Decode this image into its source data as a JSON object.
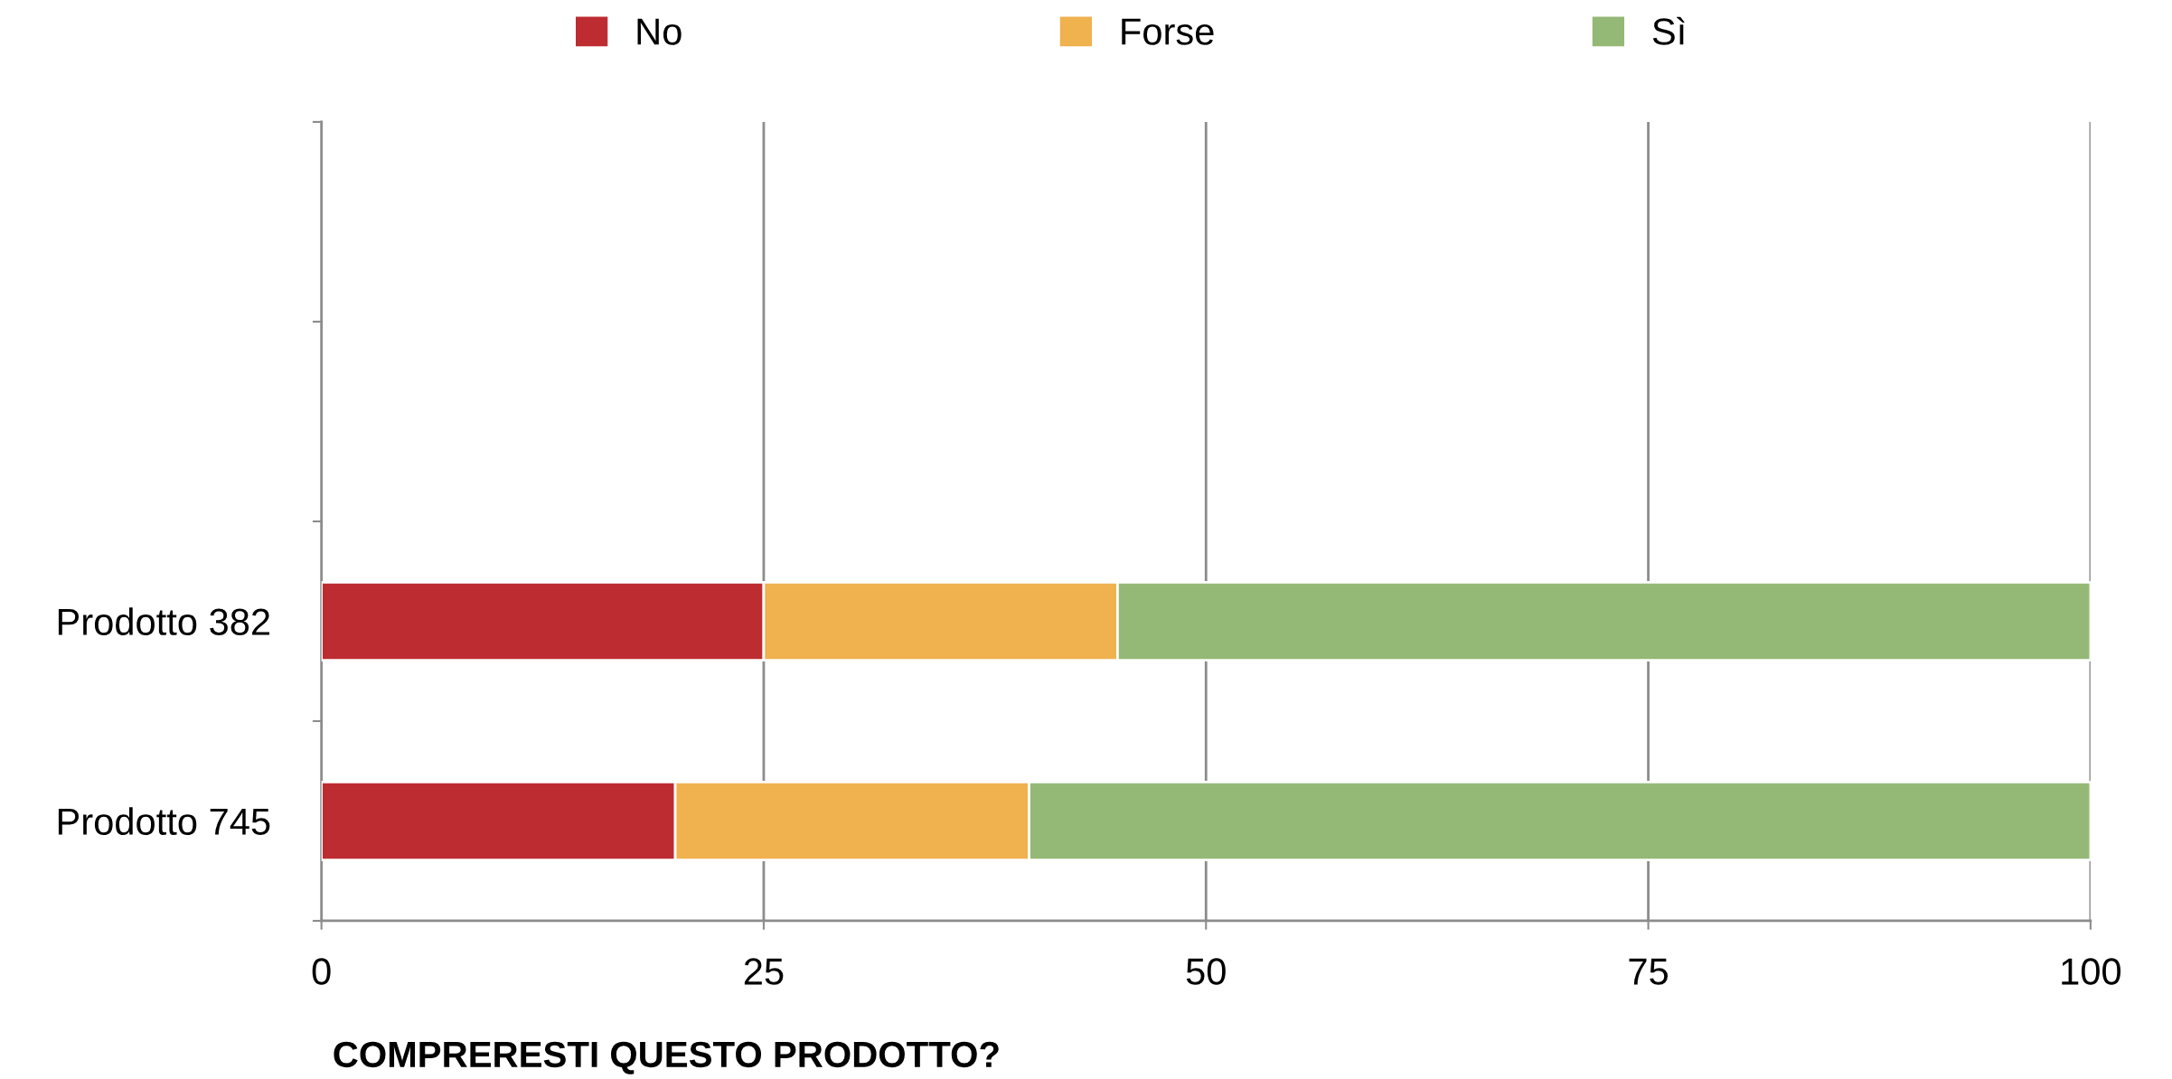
{
  "chart_data": {
    "type": "bar",
    "orientation": "horizontal",
    "stacked": true,
    "categories": [
      null,
      null,
      "Prodotto 382",
      "Prodotto 745"
    ],
    "series": [
      {
        "name": "No",
        "color": "#bd2c31",
        "values": [
          null,
          null,
          25,
          20
        ]
      },
      {
        "name": "Forse",
        "color": "#f0b14f",
        "values": [
          null,
          null,
          20,
          20
        ]
      },
      {
        "name": "Sì",
        "color": "#94b876",
        "values": [
          null,
          null,
          55,
          60
        ]
      }
    ],
    "xlim": [
      0,
      100
    ],
    "xticks": [
      0,
      25,
      50,
      75,
      100
    ],
    "xlabel": "COMPRERESTI QUESTO PRODOTTO?",
    "grid": "x",
    "legend": "top"
  }
}
